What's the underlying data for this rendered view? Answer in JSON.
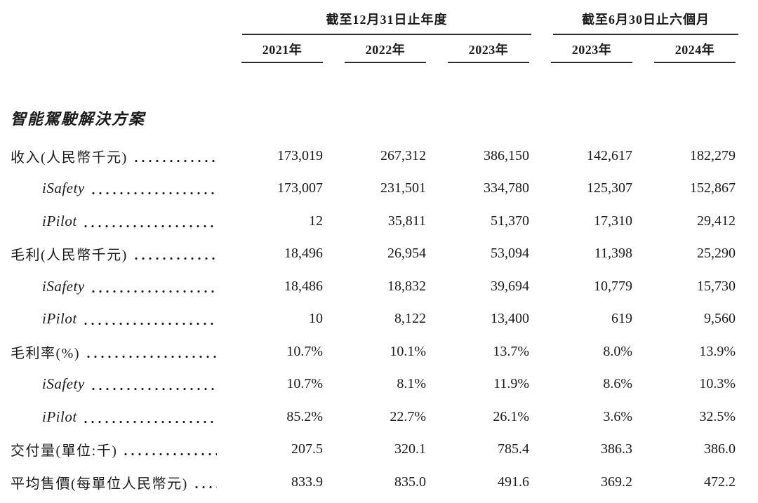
{
  "colors": {
    "text": "#1b1b1b",
    "rule": "#2b2b2b",
    "background": "#ffffff"
  },
  "table": {
    "column_groups": [
      {
        "title": "截至12月31日止年度",
        "years": [
          "2021年",
          "2022年",
          "2023年"
        ]
      },
      {
        "title": "截至6月30日止六個月",
        "years": [
          "2023年",
          "2024年"
        ]
      }
    ],
    "section_title": "智能駕駛解決方案",
    "rows": [
      {
        "label": "收入(人民幣千元)",
        "indent": false,
        "values": [
          "173,019",
          "267,312",
          "386,150",
          "142,617",
          "182,279"
        ]
      },
      {
        "label": "iSafety",
        "indent": true,
        "values": [
          "173,007",
          "231,501",
          "334,780",
          "125,307",
          "152,867"
        ]
      },
      {
        "label": "iPilot",
        "indent": true,
        "values": [
          "12",
          "35,811",
          "51,370",
          "17,310",
          "29,412"
        ]
      },
      {
        "label": "毛利(人民幣千元)",
        "indent": false,
        "values": [
          "18,496",
          "26,954",
          "53,094",
          "11,398",
          "25,290"
        ]
      },
      {
        "label": "iSafety",
        "indent": true,
        "values": [
          "18,486",
          "18,832",
          "39,694",
          "10,779",
          "15,730"
        ]
      },
      {
        "label": "iPilot",
        "indent": true,
        "values": [
          "10",
          "8,122",
          "13,400",
          "619",
          "9,560"
        ]
      },
      {
        "label": "毛利率(%)",
        "indent": false,
        "values": [
          "10.7%",
          "10.1%",
          "13.7%",
          "8.0%",
          "13.9%"
        ]
      },
      {
        "label": "iSafety",
        "indent": true,
        "values": [
          "10.7%",
          "8.1%",
          "11.9%",
          "8.6%",
          "10.3%"
        ]
      },
      {
        "label": "iPilot",
        "indent": true,
        "values": [
          "85.2%",
          "22.7%",
          "26.1%",
          "3.6%",
          "32.5%"
        ]
      },
      {
        "label": "交付量(單位:千)",
        "indent": false,
        "values": [
          "207.5",
          "320.1",
          "785.4",
          "386.3",
          "386.0"
        ]
      },
      {
        "label": "平均售價(每單位人民幣元)",
        "indent": false,
        "values": [
          "833.9",
          "835.0",
          "491.6",
          "369.2",
          "472.2"
        ]
      }
    ]
  }
}
